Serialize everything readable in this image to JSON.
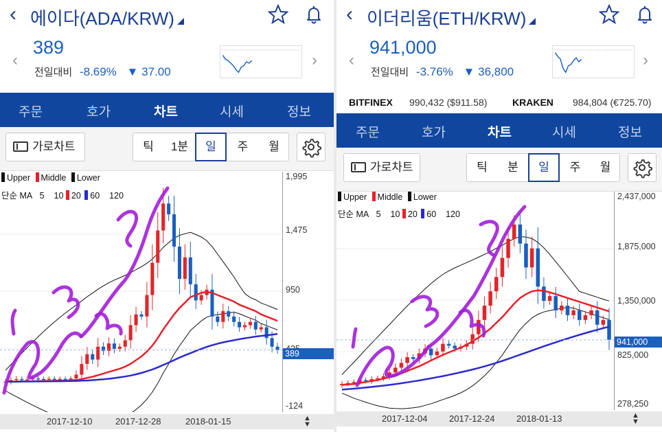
{
  "left": {
    "title": "에이다(ADA/KRW)",
    "price": "389",
    "change_label": "전일대비",
    "change_pct": "-8.69%",
    "change_amt": "37.00",
    "tabs": [
      "주문",
      "호가",
      "차트",
      "시세",
      "정보"
    ],
    "active_tab": "차트",
    "landscape_label": "가로차트",
    "periods": [
      "틱",
      "1분",
      "일",
      "주",
      "월"
    ],
    "selected_period": "일",
    "legend_bands": [
      "Upper",
      "Middle",
      "Lower"
    ],
    "legend_ma_label": "단순 MA",
    "legend_ma": [
      "5",
      "10",
      "20",
      "60",
      "120"
    ],
    "y_labels": [
      "1,995",
      "1,475",
      "950",
      "425",
      "-124"
    ],
    "last_price_tag": "389",
    "x_labels": [
      "2017-12-10",
      "2017-12-28",
      "2018-01-15"
    ]
  },
  "right": {
    "title": "이더리움(ETH/KRW)",
    "price": "941,000",
    "change_label": "전일대비",
    "change_pct": "-3.76%",
    "change_amt": "36,800",
    "exchanges": [
      {
        "name": "BITFINEX",
        "value": "990,432 ($911.58)"
      },
      {
        "name": "KRAKEN",
        "value": "984,804 (€725.70)"
      }
    ],
    "tabs": [
      "주문",
      "호가",
      "차트",
      "시세",
      "정보"
    ],
    "active_tab": "차트",
    "landscape_label": "가로차트",
    "periods": [
      "틱",
      "분",
      "일",
      "주",
      "월"
    ],
    "selected_period": "일",
    "legend_bands": [
      "Upper",
      "Middle",
      "Lower"
    ],
    "legend_ma_label": "단순 MA",
    "legend_ma": [
      "5",
      "10",
      "20",
      "60",
      "120"
    ],
    "y_labels": [
      "2,437,000",
      "1,875,000",
      "1,350,000",
      "825,000",
      "278,250"
    ],
    "last_price_tag": "941,000",
    "x_labels": [
      "2017-12-04",
      "2017-12-24",
      "2018-01-13"
    ]
  },
  "colors": {
    "brand_blue": "#10469e",
    "title_blue": "#1b3f94",
    "down_blue": "#1b5fbf",
    "up_red": "#e0262a",
    "ma20_red": "#e8202a",
    "ma60_blue": "#2a2ad0",
    "band_black": "#111111",
    "annotation_purple": "#a21ed8"
  },
  "chart_data": [
    {
      "type": "candlestick",
      "series": [
        {
          "name": "Upper"
        },
        {
          "name": "Middle"
        },
        {
          "name": "Lower"
        }
      ],
      "ma_periods": [
        5,
        10,
        20,
        60,
        120
      ],
      "ylim": [
        -124,
        1995
      ],
      "x_ticks": [
        "2017-12-10",
        "2017-12-28",
        "2018-01-15"
      ],
      "last_price": 389,
      "close": [
        95,
        110,
        120,
        115,
        118,
        125,
        120,
        118,
        122,
        119,
        121,
        120,
        125,
        160,
        260,
        350,
        300,
        420,
        380,
        450,
        400,
        420,
        480,
        620,
        720,
        700,
        900,
        1200,
        1500,
        1750,
        1650,
        1350,
        1050,
        1250,
        1000,
        850,
        900,
        950,
        700,
        650,
        750,
        700,
        650,
        600,
        620,
        650,
        580,
        600,
        500,
        420,
        389
      ],
      "ma20": [
        95,
        95,
        96,
        97,
        98,
        99,
        100,
        101,
        102,
        103,
        104,
        105,
        107,
        110,
        118,
        130,
        140,
        155,
        170,
        185,
        200,
        215,
        235,
        260,
        295,
        330,
        375,
        430,
        500,
        580,
        650,
        720,
        780,
        830,
        880,
        900,
        920,
        930,
        920,
        900,
        880,
        860,
        840,
        810,
        790,
        770,
        750,
        720,
        700,
        680,
        660
      ],
      "ma60": [
        95,
        95,
        95,
        96,
        96,
        97,
        97,
        98,
        98,
        99,
        99,
        100,
        101,
        102,
        104,
        106,
        109,
        113,
        117,
        122,
        128,
        135,
        143,
        152,
        163,
        176,
        191,
        208,
        228,
        250,
        272,
        295,
        318,
        340,
        360,
        380,
        400,
        418,
        434,
        448,
        460,
        470,
        480,
        490,
        498,
        506,
        514,
        520,
        526,
        532,
        538
      ]
    },
    {
      "type": "candlestick",
      "series": [
        {
          "name": "Upper"
        },
        {
          "name": "Middle"
        },
        {
          "name": "Lower"
        }
      ],
      "ma_periods": [
        5,
        10,
        20,
        60,
        120
      ],
      "ylim": [
        278250,
        2437000
      ],
      "x_ticks": [
        "2017-12-04",
        "2017-12-24",
        "2018-01-13"
      ],
      "last_price": 941000,
      "close": [
        480000,
        490000,
        500000,
        520000,
        510000,
        530000,
        540000,
        560000,
        600000,
        650000,
        700000,
        760000,
        740000,
        800000,
        850000,
        780000,
        820000,
        900000,
        880000,
        850000,
        870000,
        900000,
        1000000,
        1150000,
        1300000,
        1450000,
        1600000,
        1800000,
        2000000,
        2150000,
        1950000,
        1700000,
        1900000,
        1500000,
        1350000,
        1400000,
        1250000,
        1300000,
        1200000,
        1250000,
        1150000,
        1200000,
        1250000,
        1100000,
        1150000,
        941000
      ],
      "ma20": [
        470000,
        475000,
        480000,
        490000,
        500000,
        510000,
        520000,
        535000,
        550000,
        570000,
        590000,
        615000,
        640000,
        665000,
        695000,
        725000,
        755000,
        785000,
        810000,
        835000,
        860000,
        890000,
        925000,
        965000,
        1010000,
        1060000,
        1120000,
        1180000,
        1250000,
        1320000,
        1380000,
        1420000,
        1450000,
        1460000,
        1455000,
        1440000,
        1420000,
        1400000,
        1380000,
        1360000,
        1340000,
        1320000,
        1300000,
        1280000,
        1260000,
        1240000
      ],
      "ma60": [
        420000,
        425000,
        430000,
        436000,
        442000,
        448000,
        455000,
        462000,
        470000,
        478000,
        487000,
        496000,
        506000,
        516000,
        527000,
        538000,
        550000,
        562000,
        575000,
        588000,
        602000,
        616000,
        631000,
        647000,
        664000,
        682000,
        701000,
        721000,
        742000,
        764000,
        786000,
        808000,
        830000,
        852000,
        874000,
        895000,
        916000,
        936000,
        956000,
        975000,
        994000,
        1012000,
        1030000,
        1047000,
        1064000,
        1080000
      ]
    }
  ]
}
